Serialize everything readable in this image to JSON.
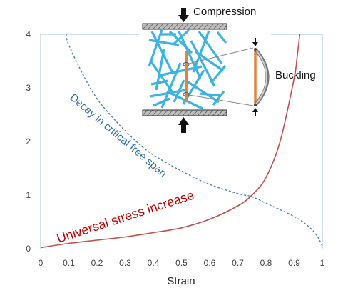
{
  "chart_data": {
    "type": "line",
    "title": "",
    "xlabel": "Strain",
    "ylabel": "",
    "xlim": [
      0,
      1
    ],
    "ylim": [
      0,
      4
    ],
    "x_ticks": [
      "0",
      "0.1",
      "0.2",
      "0.3",
      "0.4",
      "0.5",
      "0.6",
      "0.7",
      "0.8",
      "0.9",
      "1"
    ],
    "y_ticks": [
      "0",
      "1",
      "2",
      "3",
      "4"
    ],
    "grid": false,
    "series": [
      {
        "name": "Universal stress increase",
        "color": "#c0504d",
        "style": "solid",
        "x": [
          0,
          0.1,
          0.2,
          0.3,
          0.4,
          0.5,
          0.6,
          0.7,
          0.75,
          0.8,
          0.85,
          0.9,
          0.91,
          0.92
        ],
        "y": [
          0.02,
          0.1,
          0.16,
          0.22,
          0.3,
          0.39,
          0.55,
          0.8,
          1.0,
          1.33,
          2.0,
          3.18,
          3.55,
          4.0
        ]
      },
      {
        "name": "Decay in critical free span",
        "color": "#4f81bd",
        "style": "dashed",
        "x": [
          0.09,
          0.1,
          0.15,
          0.2,
          0.25,
          0.3,
          0.35,
          0.4,
          0.5,
          0.6,
          0.7,
          0.75,
          0.8,
          0.9,
          0.95,
          0.98,
          1.0
        ],
        "y": [
          4.0,
          3.8,
          3.25,
          2.8,
          2.48,
          2.2,
          1.95,
          1.75,
          1.45,
          1.2,
          1.03,
          0.97,
          0.85,
          0.6,
          0.42,
          0.25,
          0.05
        ]
      }
    ],
    "annotations": {
      "compression": "Compression",
      "buckling": "Buckling"
    }
  }
}
